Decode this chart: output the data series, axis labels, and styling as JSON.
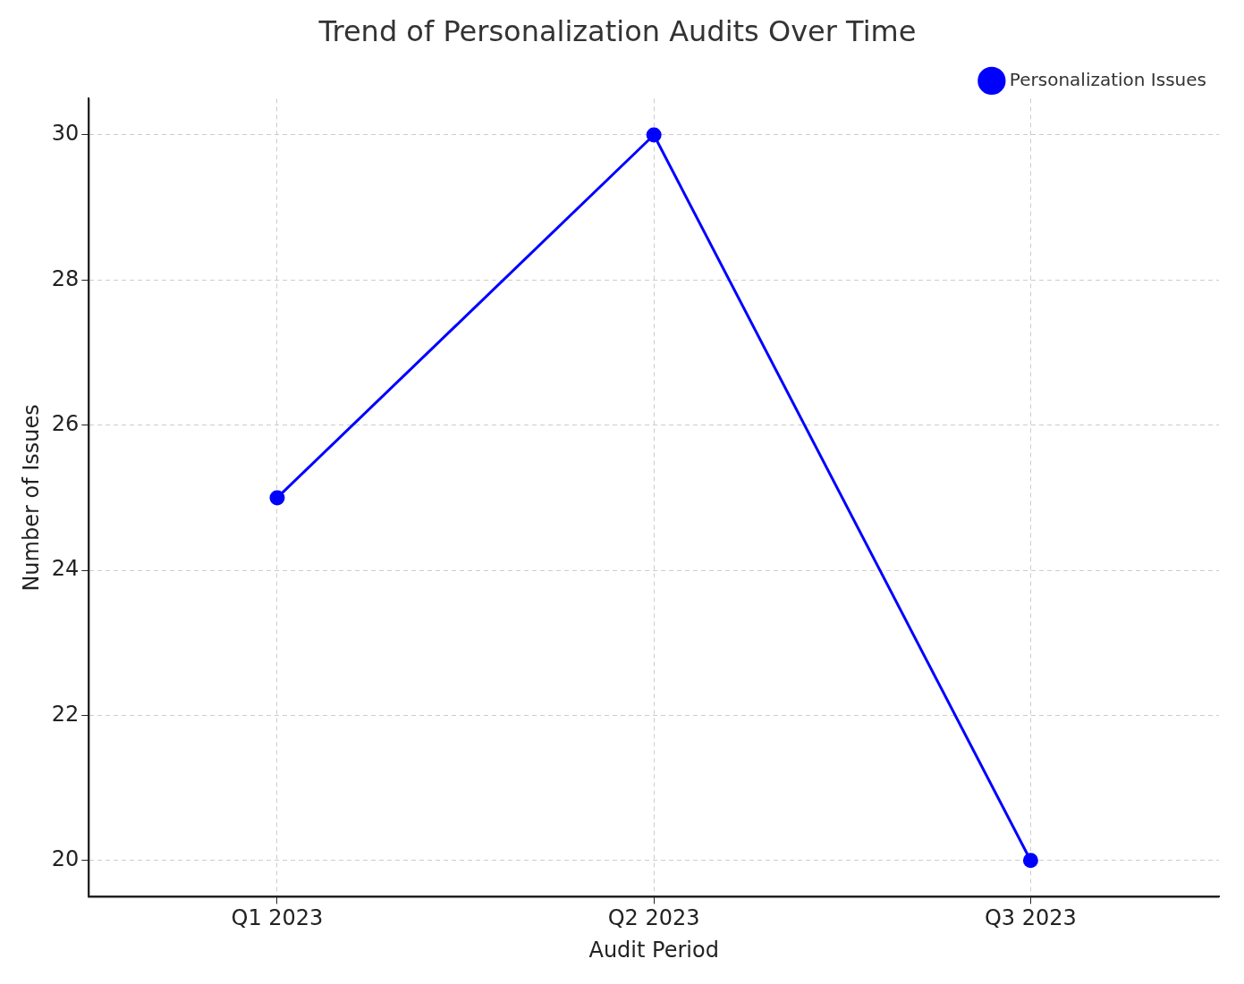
{
  "chart_data": {
    "type": "line",
    "title": "Trend of Personalization Audits Over Time",
    "xlabel": "Audit Period",
    "ylabel": "Number of Issues",
    "categories": [
      "Q1 2023",
      "Q2 2023",
      "Q3 2023"
    ],
    "series": [
      {
        "name": "Personalization Issues",
        "color": "#0000ff",
        "values": [
          25,
          30,
          20
        ]
      }
    ],
    "ylim": [
      19.5,
      30.5
    ],
    "yticks": [
      20,
      22,
      24,
      26,
      28,
      30
    ],
    "grid": true,
    "legend": "top right",
    "marker": "circle",
    "line_style": "solid"
  }
}
